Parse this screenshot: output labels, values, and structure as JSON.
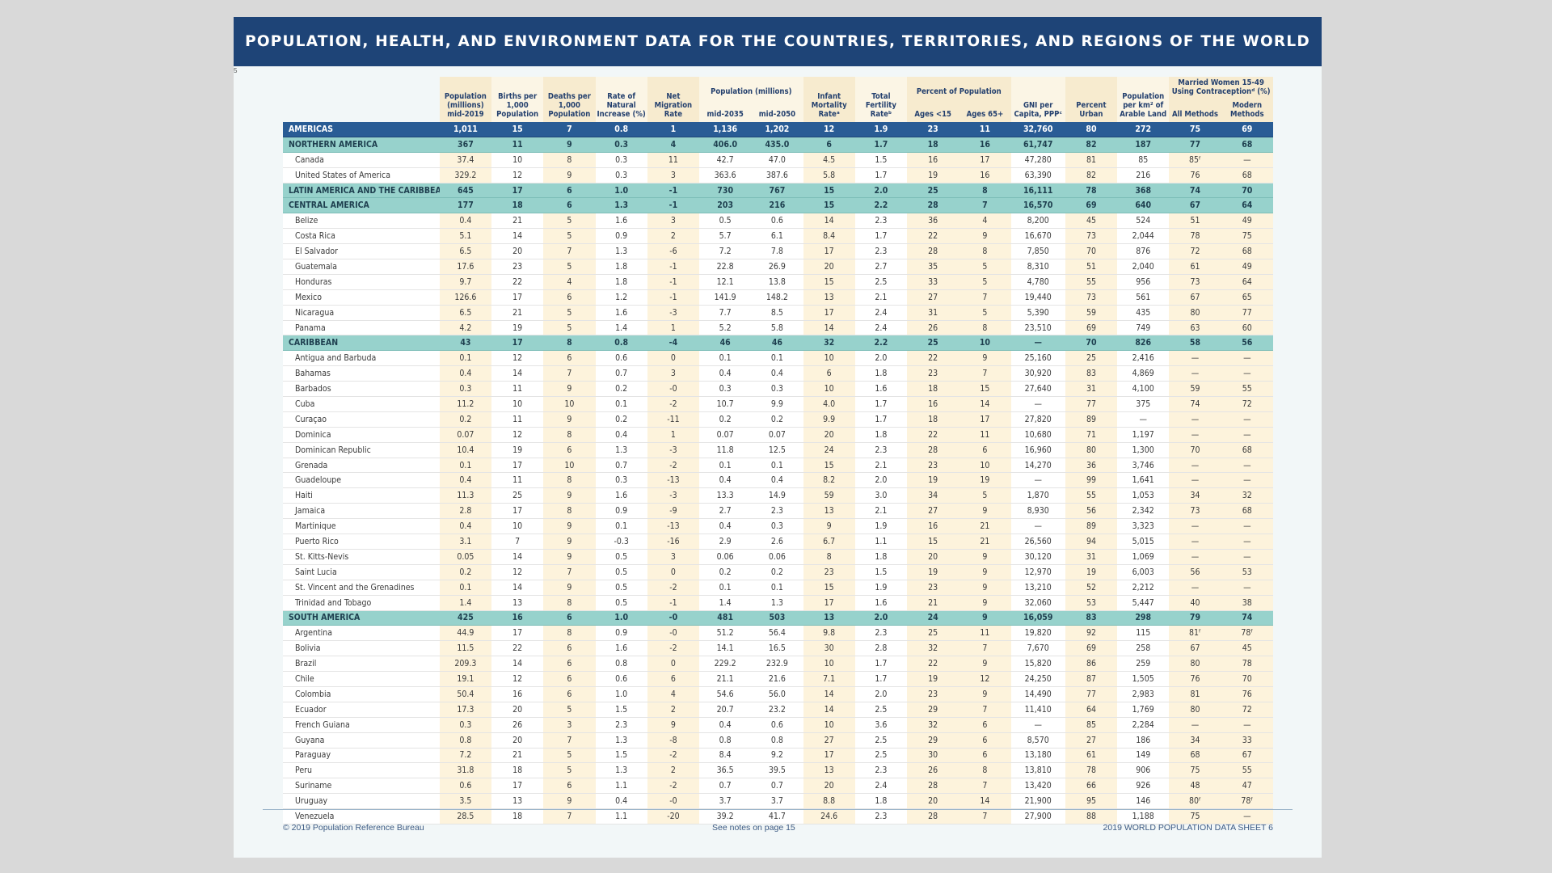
{
  "title": "POPULATION, HEALTH, AND ENVIRONMENT DATA FOR THE COUNTRIES, TERRITORIES, AND REGIONS OF THE WORLD",
  "page_mark": "5",
  "headers": {
    "population": "Population (millions) mid-2019",
    "births": "Births per 1,000 Population",
    "deaths": "Deaths per 1,000 Population",
    "natural_increase": "Rate of Natural Increase (%)",
    "net_migration": "Net Migration Rate",
    "population_group": "Population (millions)",
    "mid2035": "mid-2035",
    "mid2050": "mid-2050",
    "infant_mortality": "Infant Mortality Rateᵃ",
    "total_fertility": "Total Fertility Rateᵇ",
    "percent_group": "Percent of Population",
    "ages_under15": "Ages <15",
    "ages_65plus": "Ages 65+",
    "gni": "GNI per Capita, PPPᶜ",
    "urban": "Percent Urban",
    "arable": "Population per km² of Arable Land",
    "contraception_group": "Married Women 15-49 Using Contraceptionᵈ (%)",
    "all_methods": "All Methods",
    "modern_methods": "Modern Methods"
  },
  "rows": [
    {
      "type": "americas",
      "cells": [
        "AMERICAS",
        "1,011",
        "15",
        "7",
        "0.8",
        "1",
        "1,136",
        "1,202",
        "12",
        "1.9",
        "23",
        "11",
        "32,760",
        "80",
        "272",
        "75",
        "69"
      ]
    },
    {
      "type": "region",
      "cells": [
        "NORTHERN AMERICA",
        "367",
        "11",
        "9",
        "0.3",
        "4",
        "406.0",
        "435.0",
        "6",
        "1.7",
        "18",
        "16",
        "61,747",
        "82",
        "187",
        "77",
        "68"
      ]
    },
    {
      "type": "country",
      "cells": [
        "Canada",
        "37.4",
        "10",
        "8",
        "0.3",
        "11",
        "42.7",
        "47.0",
        "4.5",
        "1.5",
        "16",
        "17",
        "47,280",
        "81",
        "85",
        "85ᶠ",
        "—"
      ]
    },
    {
      "type": "country",
      "cells": [
        "United States of America",
        "329.2",
        "12",
        "9",
        "0.3",
        "3",
        "363.6",
        "387.6",
        "5.8",
        "1.7",
        "19",
        "16",
        "63,390",
        "82",
        "216",
        "76",
        "68"
      ]
    },
    {
      "type": "region",
      "cells": [
        "LATIN AMERICA AND THE CARIBBEAN",
        "645",
        "17",
        "6",
        "1.0",
        "-1",
        "730",
        "767",
        "15",
        "2.0",
        "25",
        "8",
        "16,111",
        "78",
        "368",
        "74",
        "70"
      ]
    },
    {
      "type": "region",
      "cells": [
        "CENTRAL AMERICA",
        "177",
        "18",
        "6",
        "1.3",
        "-1",
        "203",
        "216",
        "15",
        "2.2",
        "28",
        "7",
        "16,570",
        "69",
        "640",
        "67",
        "64"
      ]
    },
    {
      "type": "country",
      "cells": [
        "Belize",
        "0.4",
        "21",
        "5",
        "1.6",
        "3",
        "0.5",
        "0.6",
        "14",
        "2.3",
        "36",
        "4",
        "8,200",
        "45",
        "524",
        "51",
        "49"
      ]
    },
    {
      "type": "country",
      "cells": [
        "Costa Rica",
        "5.1",
        "14",
        "5",
        "0.9",
        "2",
        "5.7",
        "6.1",
        "8.4",
        "1.7",
        "22",
        "9",
        "16,670",
        "73",
        "2,044",
        "78",
        "75"
      ]
    },
    {
      "type": "country",
      "cells": [
        "El Salvador",
        "6.5",
        "20",
        "7",
        "1.3",
        "-6",
        "7.2",
        "7.8",
        "17",
        "2.3",
        "28",
        "8",
        "7,850",
        "70",
        "876",
        "72",
        "68"
      ]
    },
    {
      "type": "country",
      "cells": [
        "Guatemala",
        "17.6",
        "23",
        "5",
        "1.8",
        "-1",
        "22.8",
        "26.9",
        "20",
        "2.7",
        "35",
        "5",
        "8,310",
        "51",
        "2,040",
        "61",
        "49"
      ]
    },
    {
      "type": "country",
      "cells": [
        "Honduras",
        "9.7",
        "22",
        "4",
        "1.8",
        "-1",
        "12.1",
        "13.8",
        "15",
        "2.5",
        "33",
        "5",
        "4,780",
        "55",
        "956",
        "73",
        "64"
      ]
    },
    {
      "type": "country",
      "cells": [
        "Mexico",
        "126.6",
        "17",
        "6",
        "1.2",
        "-1",
        "141.9",
        "148.2",
        "13",
        "2.1",
        "27",
        "7",
        "19,440",
        "73",
        "561",
        "67",
        "65"
      ]
    },
    {
      "type": "country",
      "cells": [
        "Nicaragua",
        "6.5",
        "21",
        "5",
        "1.6",
        "-3",
        "7.7",
        "8.5",
        "17",
        "2.4",
        "31",
        "5",
        "5,390",
        "59",
        "435",
        "80",
        "77"
      ]
    },
    {
      "type": "country",
      "cells": [
        "Panama",
        "4.2",
        "19",
        "5",
        "1.4",
        "1",
        "5.2",
        "5.8",
        "14",
        "2.4",
        "26",
        "8",
        "23,510",
        "69",
        "749",
        "63",
        "60"
      ]
    },
    {
      "type": "region",
      "cells": [
        "CARIBBEAN",
        "43",
        "17",
        "8",
        "0.8",
        "-4",
        "46",
        "46",
        "32",
        "2.2",
        "25",
        "10",
        "—",
        "70",
        "826",
        "58",
        "56"
      ]
    },
    {
      "type": "country",
      "cells": [
        "Antigua and Barbuda",
        "0.1",
        "12",
        "6",
        "0.6",
        "0",
        "0.1",
        "0.1",
        "10",
        "2.0",
        "22",
        "9",
        "25,160",
        "25",
        "2,416",
        "—",
        "—"
      ]
    },
    {
      "type": "country",
      "cells": [
        "Bahamas",
        "0.4",
        "14",
        "7",
        "0.7",
        "3",
        "0.4",
        "0.4",
        "6",
        "1.8",
        "23",
        "7",
        "30,920",
        "83",
        "4,869",
        "—",
        "—"
      ]
    },
    {
      "type": "country",
      "cells": [
        "Barbados",
        "0.3",
        "11",
        "9",
        "0.2",
        "-0",
        "0.3",
        "0.3",
        "10",
        "1.6",
        "18",
        "15",
        "27,640",
        "31",
        "4,100",
        "59",
        "55"
      ]
    },
    {
      "type": "country",
      "cells": [
        "Cuba",
        "11.2",
        "10",
        "10",
        "0.1",
        "-2",
        "10.7",
        "9.9",
        "4.0",
        "1.7",
        "16",
        "14",
        "—",
        "77",
        "375",
        "74",
        "72"
      ]
    },
    {
      "type": "country",
      "cells": [
        "Curaçao",
        "0.2",
        "11",
        "9",
        "0.2",
        "-11",
        "0.2",
        "0.2",
        "9.9",
        "1.7",
        "18",
        "17",
        "27,820",
        "89",
        "—",
        "—",
        "—"
      ]
    },
    {
      "type": "country",
      "cells": [
        "Dominica",
        "0.07",
        "12",
        "8",
        "0.4",
        "1",
        "0.07",
        "0.07",
        "20",
        "1.8",
        "22",
        "11",
        "10,680",
        "71",
        "1,197",
        "—",
        "—"
      ]
    },
    {
      "type": "country",
      "cells": [
        "Dominican Republic",
        "10.4",
        "19",
        "6",
        "1.3",
        "-3",
        "11.8",
        "12.5",
        "24",
        "2.3",
        "28",
        "6",
        "16,960",
        "80",
        "1,300",
        "70",
        "68"
      ]
    },
    {
      "type": "country",
      "cells": [
        "Grenada",
        "0.1",
        "17",
        "10",
        "0.7",
        "-2",
        "0.1",
        "0.1",
        "15",
        "2.1",
        "23",
        "10",
        "14,270",
        "36",
        "3,746",
        "—",
        "—"
      ]
    },
    {
      "type": "country",
      "cells": [
        "Guadeloupe",
        "0.4",
        "11",
        "8",
        "0.3",
        "-13",
        "0.4",
        "0.4",
        "8.2",
        "2.0",
        "19",
        "19",
        "—",
        "99",
        "1,641",
        "—",
        "—"
      ]
    },
    {
      "type": "country",
      "cells": [
        "Haiti",
        "11.3",
        "25",
        "9",
        "1.6",
        "-3",
        "13.3",
        "14.9",
        "59",
        "3.0",
        "34",
        "5",
        "1,870",
        "55",
        "1,053",
        "34",
        "32"
      ]
    },
    {
      "type": "country",
      "cells": [
        "Jamaica",
        "2.8",
        "17",
        "8",
        "0.9",
        "-9",
        "2.7",
        "2.3",
        "13",
        "2.1",
        "27",
        "9",
        "8,930",
        "56",
        "2,342",
        "73",
        "68"
      ]
    },
    {
      "type": "country",
      "cells": [
        "Martinique",
        "0.4",
        "10",
        "9",
        "0.1",
        "-13",
        "0.4",
        "0.3",
        "9",
        "1.9",
        "16",
        "21",
        "—",
        "89",
        "3,323",
        "—",
        "—"
      ]
    },
    {
      "type": "country",
      "cells": [
        "Puerto Rico",
        "3.1",
        "7",
        "9",
        "-0.3",
        "-16",
        "2.9",
        "2.6",
        "6.7",
        "1.1",
        "15",
        "21",
        "26,560",
        "94",
        "5,015",
        "—",
        "—"
      ]
    },
    {
      "type": "country",
      "cells": [
        "St. Kitts-Nevis",
        "0.05",
        "14",
        "9",
        "0.5",
        "3",
        "0.06",
        "0.06",
        "8",
        "1.8",
        "20",
        "9",
        "30,120",
        "31",
        "1,069",
        "—",
        "—"
      ]
    },
    {
      "type": "country",
      "cells": [
        "Saint Lucia",
        "0.2",
        "12",
        "7",
        "0.5",
        "0",
        "0.2",
        "0.2",
        "23",
        "1.5",
        "19",
        "9",
        "12,970",
        "19",
        "6,003",
        "56",
        "53"
      ]
    },
    {
      "type": "country",
      "cells": [
        "St. Vincent and the Grenadines",
        "0.1",
        "14",
        "9",
        "0.5",
        "-2",
        "0.1",
        "0.1",
        "15",
        "1.9",
        "23",
        "9",
        "13,210",
        "52",
        "2,212",
        "—",
        "—"
      ]
    },
    {
      "type": "country",
      "cells": [
        "Trinidad and Tobago",
        "1.4",
        "13",
        "8",
        "0.5",
        "-1",
        "1.4",
        "1.3",
        "17",
        "1.6",
        "21",
        "9",
        "32,060",
        "53",
        "5,447",
        "40",
        "38"
      ]
    },
    {
      "type": "region",
      "cells": [
        "SOUTH AMERICA",
        "425",
        "16",
        "6",
        "1.0",
        "-0",
        "481",
        "503",
        "13",
        "2.0",
        "24",
        "9",
        "16,059",
        "83",
        "298",
        "79",
        "74"
      ]
    },
    {
      "type": "country",
      "cells": [
        "Argentina",
        "44.9",
        "17",
        "8",
        "0.9",
        "-0",
        "51.2",
        "56.4",
        "9.8",
        "2.3",
        "25",
        "11",
        "19,820",
        "92",
        "115",
        "81ᶠ",
        "78ᶠ"
      ]
    },
    {
      "type": "country",
      "cells": [
        "Bolivia",
        "11.5",
        "22",
        "6",
        "1.6",
        "-2",
        "14.1",
        "16.5",
        "30",
        "2.8",
        "32",
        "7",
        "7,670",
        "69",
        "258",
        "67",
        "45"
      ]
    },
    {
      "type": "country",
      "cells": [
        "Brazil",
        "209.3",
        "14",
        "6",
        "0.8",
        "0",
        "229.2",
        "232.9",
        "10",
        "1.7",
        "22",
        "9",
        "15,820",
        "86",
        "259",
        "80",
        "78"
      ]
    },
    {
      "type": "country",
      "cells": [
        "Chile",
        "19.1",
        "12",
        "6",
        "0.6",
        "6",
        "21.1",
        "21.6",
        "7.1",
        "1.7",
        "19",
        "12",
        "24,250",
        "87",
        "1,505",
        "76",
        "70"
      ]
    },
    {
      "type": "country",
      "cells": [
        "Colombia",
        "50.4",
        "16",
        "6",
        "1.0",
        "4",
        "54.6",
        "56.0",
        "14",
        "2.0",
        "23",
        "9",
        "14,490",
        "77",
        "2,983",
        "81",
        "76"
      ]
    },
    {
      "type": "country",
      "cells": [
        "Ecuador",
        "17.3",
        "20",
        "5",
        "1.5",
        "2",
        "20.7",
        "23.2",
        "14",
        "2.5",
        "29",
        "7",
        "11,410",
        "64",
        "1,769",
        "80",
        "72"
      ]
    },
    {
      "type": "country",
      "cells": [
        "French Guiana",
        "0.3",
        "26",
        "3",
        "2.3",
        "9",
        "0.4",
        "0.6",
        "10",
        "3.6",
        "32",
        "6",
        "—",
        "85",
        "2,284",
        "—",
        "—"
      ]
    },
    {
      "type": "country",
      "cells": [
        "Guyana",
        "0.8",
        "20",
        "7",
        "1.3",
        "-8",
        "0.8",
        "0.8",
        "27",
        "2.5",
        "29",
        "6",
        "8,570",
        "27",
        "186",
        "34",
        "33"
      ]
    },
    {
      "type": "country",
      "cells": [
        "Paraguay",
        "7.2",
        "21",
        "5",
        "1.5",
        "-2",
        "8.4",
        "9.2",
        "17",
        "2.5",
        "30",
        "6",
        "13,180",
        "61",
        "149",
        "68",
        "67"
      ]
    },
    {
      "type": "country",
      "cells": [
        "Peru",
        "31.8",
        "18",
        "5",
        "1.3",
        "2",
        "36.5",
        "39.5",
        "13",
        "2.3",
        "26",
        "8",
        "13,810",
        "78",
        "906",
        "75",
        "55"
      ]
    },
    {
      "type": "country",
      "cells": [
        "Suriname",
        "0.6",
        "17",
        "6",
        "1.1",
        "-2",
        "0.7",
        "0.7",
        "20",
        "2.4",
        "28",
        "7",
        "13,420",
        "66",
        "926",
        "48",
        "47"
      ]
    },
    {
      "type": "country",
      "cells": [
        "Uruguay",
        "3.5",
        "13",
        "9",
        "0.4",
        "-0",
        "3.7",
        "3.7",
        "8.8",
        "1.8",
        "20",
        "14",
        "21,900",
        "95",
        "146",
        "80ᶠ",
        "78ᶠ"
      ]
    },
    {
      "type": "country",
      "cells": [
        "Venezuela",
        "28.5",
        "18",
        "7",
        "1.1",
        "-20",
        "39.2",
        "41.7",
        "24.6",
        "2.3",
        "28",
        "7",
        "27,900",
        "88",
        "1,188",
        "75",
        "—"
      ]
    }
  ],
  "footer": {
    "left": "© 2019 Population Reference Bureau",
    "middle": "See notes on page 15",
    "right": "2019 WORLD POPULATION DATA SHEET 6"
  },
  "colors": {
    "banner": "#1e4477",
    "region_row": "#97d2cc",
    "americas_row": "#295c95",
    "header_tan": "#f7ebcf",
    "cell_tan": "#fdf3dc"
  }
}
